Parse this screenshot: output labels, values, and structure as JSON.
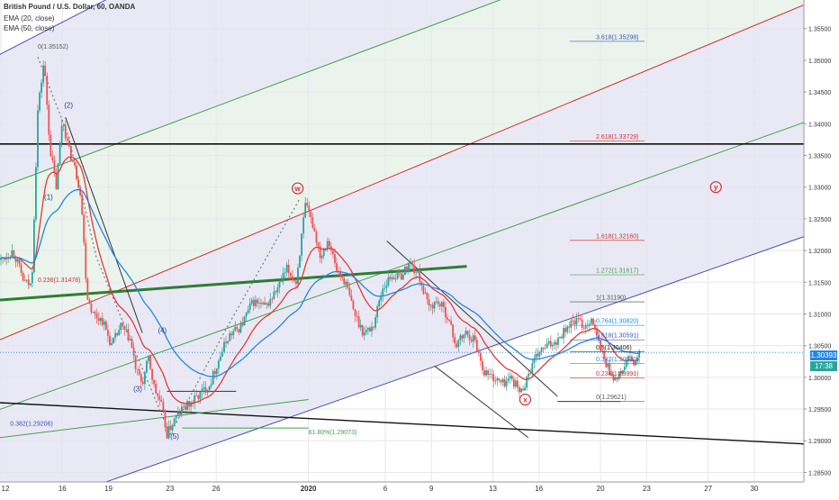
{
  "header": {
    "symbol": "British Pound / U.S. Dollar, 60, OANDA",
    "ema20": "EMA (20, close)",
    "ema50": "EMA (50, close)"
  },
  "colors": {
    "bull": "#26a69a",
    "bear": "#ef5350",
    "ema20": "#e53935",
    "ema50": "#1e88e5",
    "channel_blue": "#3f51b5",
    "channel_green": "#43a047",
    "channel_red": "#d32f2f",
    "band_blue": "#e9e9f6",
    "band_green": "#eaf4ec",
    "price_tag": "#1e88e5",
    "time_tag": "#26a69a"
  },
  "chart_data": {
    "type": "candlestick",
    "title": "British Pound / U.S. Dollar, 60, OANDA",
    "xlabel": "",
    "ylabel": "",
    "ylim": [
      1.2835,
      1.3595
    ],
    "y_ticks": [
      "1.35500",
      "1.35000",
      "1.34500",
      "1.34000",
      "1.33500",
      "1.33000",
      "1.32500",
      "1.32000",
      "1.31500",
      "1.31000",
      "1.30500",
      "1.30000",
      "1.29500",
      "1.29000",
      "1.28500"
    ],
    "x_ticks": [
      {
        "label": "12",
        "day": 0
      },
      {
        "label": "16",
        "day": 4
      },
      {
        "label": "19",
        "day": 7
      },
      {
        "label": "23",
        "day": 11
      },
      {
        "label": "26",
        "day": 14
      },
      {
        "label": "2020",
        "day": 20
      },
      {
        "label": "6",
        "day": 25
      },
      {
        "label": "9",
        "day": 28
      },
      {
        "label": "13",
        "day": 32
      },
      {
        "label": "16",
        "day": 35
      },
      {
        "label": "20",
        "day": 39
      },
      {
        "label": "23",
        "day": 42
      },
      {
        "label": "27",
        "day": 46
      },
      {
        "label": "30",
        "day": 49
      }
    ],
    "current_price": "1.30393",
    "countdown": "17:38",
    "price_path": [
      [
        0.0,
        1.3185
      ],
      [
        0.8,
        1.32
      ],
      [
        1.5,
        1.315
      ],
      [
        2.0,
        1.3145
      ],
      [
        2.4,
        1.342
      ],
      [
        2.8,
        1.35
      ],
      [
        3.2,
        1.336
      ],
      [
        3.6,
        1.33
      ],
      [
        4.0,
        1.341
      ],
      [
        4.4,
        1.336
      ],
      [
        4.8,
        1.333
      ],
      [
        5.2,
        1.329
      ],
      [
        5.6,
        1.313
      ],
      [
        6.0,
        1.31
      ],
      [
        6.6,
        1.309
      ],
      [
        7.2,
        1.305
      ],
      [
        7.8,
        1.308
      ],
      [
        8.4,
        1.306
      ],
      [
        8.8,
        1.301
      ],
      [
        9.2,
        1.299
      ],
      [
        9.6,
        1.303
      ],
      [
        10.0,
        1.298
      ],
      [
        10.4,
        1.296
      ],
      [
        10.8,
        1.291
      ],
      [
        11.2,
        1.293
      ],
      [
        11.8,
        1.295
      ],
      [
        12.4,
        1.296
      ],
      [
        13.0,
        1.2975
      ],
      [
        13.6,
        1.299
      ],
      [
        14.2,
        1.303
      ],
      [
        14.8,
        1.3065
      ],
      [
        15.6,
        1.308
      ],
      [
        16.4,
        1.312
      ],
      [
        17.2,
        1.311
      ],
      [
        18.0,
        1.314
      ],
      [
        18.6,
        1.317
      ],
      [
        19.2,
        1.315
      ],
      [
        19.8,
        1.327
      ],
      [
        20.3,
        1.324
      ],
      [
        20.8,
        1.319
      ],
      [
        21.3,
        1.322
      ],
      [
        21.8,
        1.317
      ],
      [
        22.4,
        1.315
      ],
      [
        23.0,
        1.31
      ],
      [
        23.6,
        1.307
      ],
      [
        24.2,
        1.308
      ],
      [
        24.8,
        1.314
      ],
      [
        25.4,
        1.316
      ],
      [
        26.0,
        1.316
      ],
      [
        26.6,
        1.318
      ],
      [
        27.2,
        1.316
      ],
      [
        27.8,
        1.311
      ],
      [
        28.4,
        1.312
      ],
      [
        29.0,
        1.31
      ],
      [
        29.6,
        1.305
      ],
      [
        30.2,
        1.307
      ],
      [
        30.8,
        1.306
      ],
      [
        31.4,
        1.301
      ],
      [
        32.0,
        1.3
      ],
      [
        32.6,
        1.299
      ],
      [
        33.2,
        1.3
      ],
      [
        33.8,
        1.2975
      ],
      [
        34.4,
        1.301
      ],
      [
        35.0,
        1.304
      ],
      [
        35.6,
        1.305
      ],
      [
        36.2,
        1.306
      ],
      [
        36.8,
        1.308
      ],
      [
        37.4,
        1.309
      ],
      [
        38.0,
        1.308
      ],
      [
        38.4,
        1.3095
      ],
      [
        38.8,
        1.306
      ],
      [
        39.2,
        1.303
      ],
      [
        39.6,
        1.301
      ],
      [
        40.0,
        1.2995
      ],
      [
        40.4,
        1.301
      ],
      [
        40.8,
        1.303
      ],
      [
        41.2,
        1.302
      ],
      [
        41.6,
        1.304
      ]
    ],
    "wave_labels": [
      {
        "label": "(1)",
        "day": 3.1,
        "price": 1.328
      },
      {
        "label": "(2)",
        "day": 4.4,
        "price": 1.3425
      },
      {
        "label": "(3)",
        "day": 8.9,
        "price": 1.2978
      },
      {
        "label": "(4)",
        "day": 10.5,
        "price": 1.307
      },
      {
        "label": "(5)",
        "day": 11.3,
        "price": 1.2903
      },
      {
        "label": "w",
        "day": 19.3,
        "price": 1.3298,
        "circled": true
      },
      {
        "label": "x",
        "day": 34.1,
        "price": 1.2965,
        "circled": true
      },
      {
        "label": "y",
        "day": 46.5,
        "price": 1.33,
        "circled": true
      }
    ],
    "fib_right": [
      {
        "label": "3.618(1.35298)",
        "price": 1.35298,
        "color": "#3f51b5"
      },
      {
        "label": "2.618(1.33729)",
        "price": 1.33729,
        "color": "#d32f2f"
      },
      {
        "label": "1.618(1.32160)",
        "price": 1.3216,
        "color": "#d32f2f"
      },
      {
        "label": "1.272(1.31617)",
        "price": 1.31617,
        "color": "#43a047"
      },
      {
        "label": "1(1.31190)",
        "price": 1.3119,
        "color": "#555555"
      },
      {
        "label": "0.764(1.30820)",
        "price": 1.3082,
        "color": "#1e88e5"
      },
      {
        "label": "0.618(1.30591)",
        "price": 1.30591,
        "color": "#3f51b5"
      },
      {
        "label": "0.5(1.30406)",
        "price": 1.30406,
        "color": "#222222"
      },
      {
        "label": "0.382(1.30220)",
        "price": 1.3022,
        "color": "#1e88e5"
      },
      {
        "label": "0.236(1.29991)",
        "price": 1.29991,
        "color": "#d32f2f"
      },
      {
        "label": "0(1.29621)",
        "price": 1.29621,
        "color": "#555555"
      }
    ],
    "fib_left": [
      {
        "label": "0(1.35152)",
        "price": 1.35152,
        "color": "#555555",
        "day": 2.4
      },
      {
        "label": "0.236(1.31478)",
        "price": 1.31478,
        "color": "#d32f2f",
        "day": 2.4
      },
      {
        "label": "0.382(1.29206)",
        "price": 1.29206,
        "color": "#3f51b5",
        "day": 0.6
      },
      {
        "label": "61.80%(1.29073)",
        "price": 1.29073,
        "color": "#43a047",
        "day": 20.0
      }
    ]
  }
}
